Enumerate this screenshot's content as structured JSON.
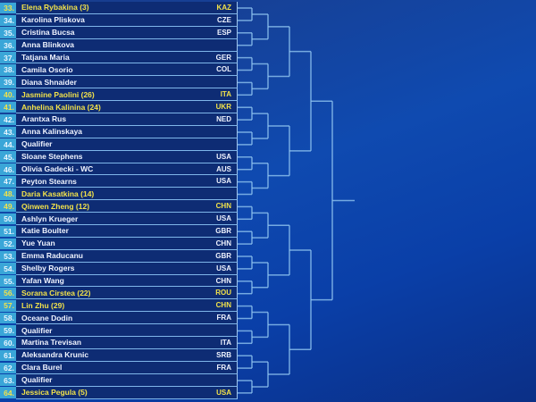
{
  "draw": {
    "players": [
      {
        "n": "33.",
        "name": "Elena Rybakina (3)",
        "c": "KAZ",
        "seed": true
      },
      {
        "n": "34.",
        "name": "Karolina Pliskova",
        "c": "CZE"
      },
      {
        "n": "35.",
        "name": "Cristina Bucsa",
        "c": "ESP"
      },
      {
        "n": "36.",
        "name": "Anna Blinkova",
        "c": ""
      },
      {
        "n": "37.",
        "name": "Tatjana Maria",
        "c": "GER"
      },
      {
        "n": "38.",
        "name": "Camila Osorio",
        "c": "COL"
      },
      {
        "n": "39.",
        "name": "Diana Shnaider",
        "c": ""
      },
      {
        "n": "40.",
        "name": "Jasmine Paolini (26)",
        "c": "ITA",
        "seed": true
      },
      {
        "n": "41.",
        "name": "Anhelina Kalinina (24)",
        "c": "UKR",
        "seed": true
      },
      {
        "n": "42.",
        "name": "Arantxa Rus",
        "c": "NED"
      },
      {
        "n": "43.",
        "name": "Anna Kalinskaya",
        "c": ""
      },
      {
        "n": "44.",
        "name": "Qualifier",
        "c": ""
      },
      {
        "n": "45.",
        "name": "Sloane Stephens",
        "c": "USA"
      },
      {
        "n": "46.",
        "name": "Olivia Gadecki - WC",
        "c": "AUS"
      },
      {
        "n": "47.",
        "name": "Peyton Stearns",
        "c": "USA"
      },
      {
        "n": "48.",
        "name": "Daria Kasatkina (14)",
        "c": "",
        "seed": true
      },
      {
        "n": "49.",
        "name": "Qinwen Zheng (12)",
        "c": "CHN",
        "seed": true
      },
      {
        "n": "50.",
        "name": "Ashlyn Krueger",
        "c": "USA"
      },
      {
        "n": "51.",
        "name": "Katie Boulter",
        "c": "GBR"
      },
      {
        "n": "52.",
        "name": "Yue Yuan",
        "c": "CHN"
      },
      {
        "n": "53.",
        "name": "Emma Raducanu",
        "c": "GBR"
      },
      {
        "n": "54.",
        "name": "Shelby Rogers",
        "c": "USA"
      },
      {
        "n": "55.",
        "name": "Yafan Wang",
        "c": "CHN"
      },
      {
        "n": "56.",
        "name": "Sorana Cirstea (22)",
        "c": "ROU",
        "seed": true
      },
      {
        "n": "57.",
        "name": "Lin Zhu (29)",
        "c": "CHN",
        "seed": true
      },
      {
        "n": "58.",
        "name": "Oceane Dodin",
        "c": "FRA"
      },
      {
        "n": "59.",
        "name": "Qualifier",
        "c": ""
      },
      {
        "n": "60.",
        "name": "Martina Trevisan",
        "c": "ITA"
      },
      {
        "n": "61.",
        "name": "Aleksandra Krunic",
        "c": "SRB"
      },
      {
        "n": "62.",
        "name": "Clara Burel",
        "c": "FRA"
      },
      {
        "n": "63.",
        "name": "Qualifier",
        "c": ""
      },
      {
        "n": "64.",
        "name": "Jessica Pegula (5)",
        "c": "USA",
        "seed": true
      }
    ]
  },
  "colors": {
    "seed": "#f2e24a",
    "bracket": "#8fc4f0"
  }
}
